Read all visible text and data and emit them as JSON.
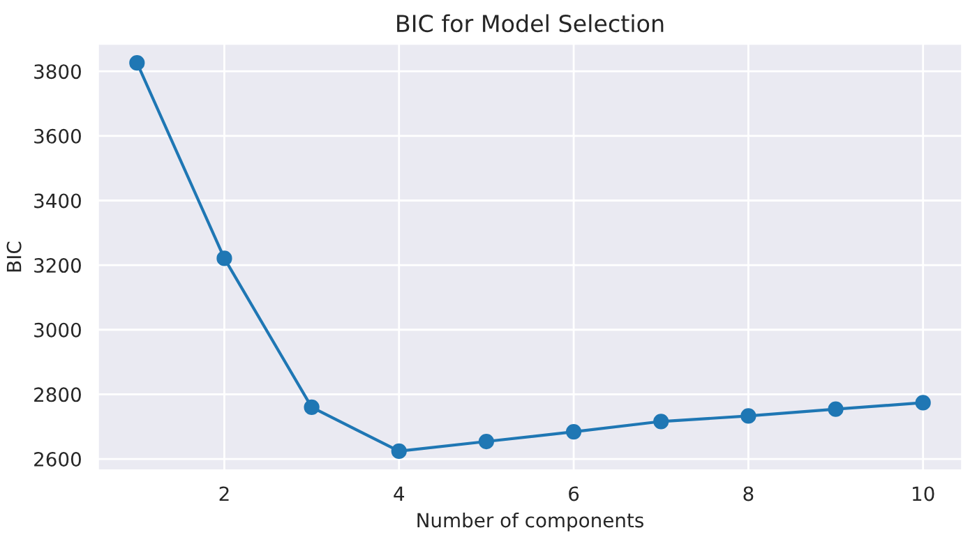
{
  "chart_data": {
    "type": "line",
    "title": "BIC for Model Selection",
    "xlabel": "Number of components",
    "ylabel": "BIC",
    "x": [
      1,
      2,
      3,
      4,
      5,
      6,
      7,
      8,
      9,
      10
    ],
    "series": [
      {
        "color": "#1f77b4",
        "values": [
          3826,
          3221,
          2760,
          2624,
          2654,
          2684,
          2716,
          2733,
          2754,
          2774
        ]
      }
    ],
    "xlim": [
      0.55,
      10.45
    ],
    "xticks": [
      2,
      4,
      6,
      8,
      10
    ],
    "ylim": [
      2564,
      3886
    ],
    "yticks": [
      2600,
      2800,
      3000,
      3200,
      3400,
      3600,
      3800
    ],
    "grid": true,
    "marker": "circle",
    "line_style": "solid"
  }
}
